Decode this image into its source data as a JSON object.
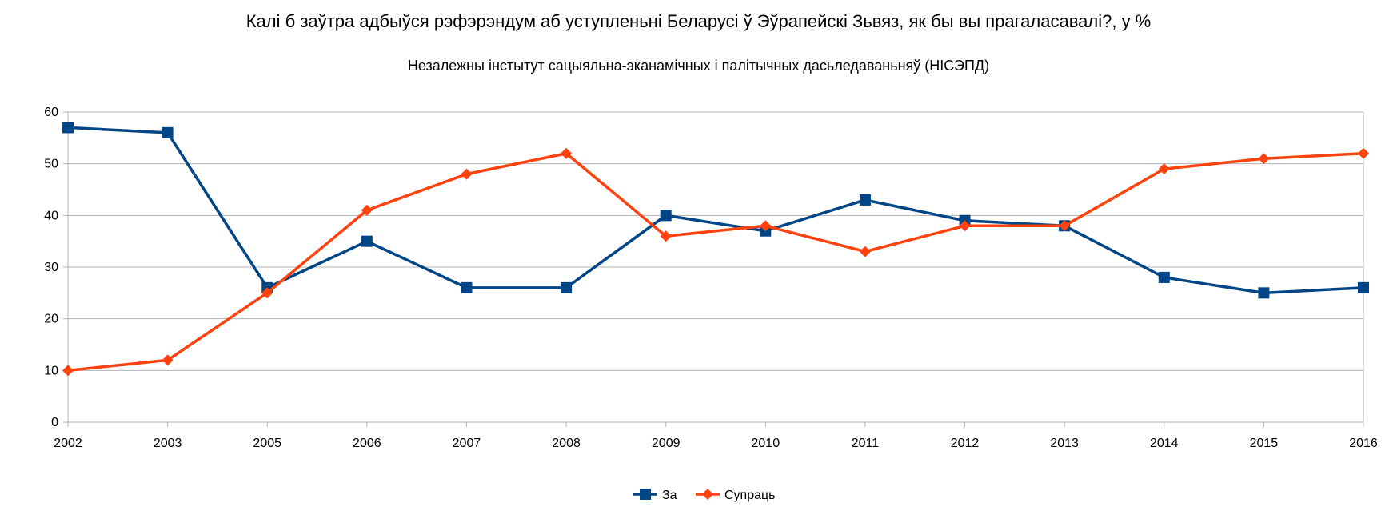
{
  "chart_data": {
    "type": "line",
    "title": "Калі б заўтра адбыўся рэфэрэндум аб уступленьні Беларусі ў Эўрапейскі Зьвяз, як бы вы прагаласавалі?, у %",
    "subtitle": "Незалежны інстытут сацыяльна-эканамічных і палітычных дасьледаваньняў (НІСЭПД)",
    "xlabel": "",
    "ylabel": "",
    "categories": [
      "2002",
      "2003",
      "2005",
      "2006",
      "2007",
      "2008",
      "2009",
      "2010",
      "2011",
      "2012",
      "2013",
      "2014",
      "2015",
      "2016"
    ],
    "ylim": [
      0,
      60
    ],
    "yticks": [
      0,
      10,
      20,
      30,
      40,
      50,
      60
    ],
    "grid": true,
    "legend_position": "bottom",
    "series": [
      {
        "name": "За",
        "color": "#004586",
        "marker": "square",
        "values": [
          57,
          56,
          26,
          35,
          26,
          26,
          40,
          37,
          43,
          39,
          38,
          28,
          25,
          26
        ]
      },
      {
        "name": "Супраць",
        "color": "#ff420e",
        "marker": "diamond",
        "values": [
          10,
          12,
          25,
          41,
          48,
          52,
          36,
          38,
          33,
          38,
          38,
          49,
          51,
          52
        ]
      }
    ]
  }
}
